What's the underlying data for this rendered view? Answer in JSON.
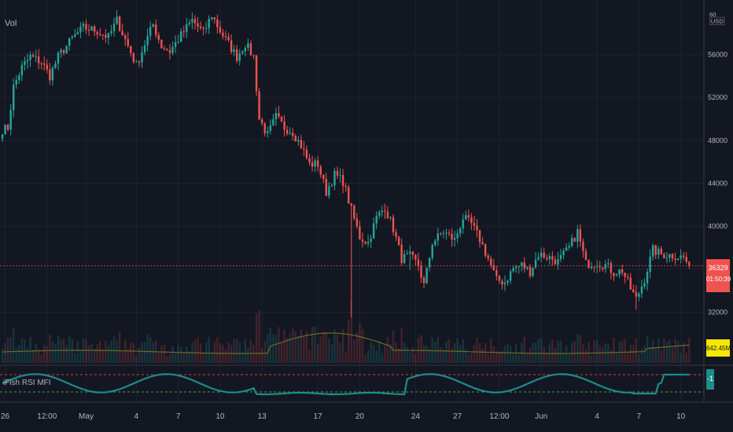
{
  "chart": {
    "volume_label": "Vol",
    "indicator_label": "iFish RSI MFI",
    "currency_label": "USD",
    "price_axis_top": "60",
    "colors": {
      "background": "#131722",
      "up": "#26a69a",
      "down": "#ef5350",
      "grid": "#1e222d",
      "axis_text": "#b2b5be",
      "ma": "#6b6b2a",
      "indicator_line": "#1c8c8c",
      "upper_band": "#e53935",
      "lower_band": "#43a047",
      "price_tag": "#ef5350",
      "volume_tag": "#f6e600"
    }
  },
  "chart_data": {
    "type": "candlestick",
    "price_axis": {
      "ticks": [
        56000,
        52000,
        48000,
        44000,
        40000,
        36000,
        32000
      ],
      "tick_labels": [
        "56000",
        "52000",
        "48000",
        "44000",
        "40000",
        "36000",
        "32000"
      ],
      "range": [
        30500,
        60500
      ]
    },
    "last_price": 36329,
    "last_price_label": "36329",
    "countdown_label": "01:50:39",
    "volume_ma_label": "642.45M",
    "indicator_value_label": "-1",
    "x_axis": {
      "labels": [
        "26",
        "12:00",
        "May",
        "4",
        "7",
        "10",
        "13",
        "17",
        "20",
        "24",
        "27",
        "12:00",
        "Jun",
        "4",
        "7",
        "10"
      ],
      "label_index": [
        1,
        16,
        30,
        48,
        63,
        78,
        93,
        113,
        128,
        148,
        163,
        178,
        193,
        213,
        228,
        243
      ]
    },
    "price_keyframes": [
      [
        0,
        49000
      ],
      [
        2,
        49200
      ],
      [
        4,
        53000
      ],
      [
        7,
        54800
      ],
      [
        10,
        55800
      ],
      [
        14,
        55300
      ],
      [
        17,
        54000
      ],
      [
        20,
        55800
      ],
      [
        25,
        57500
      ],
      [
        29,
        58500
      ],
      [
        34,
        58200
      ],
      [
        38,
        57600
      ],
      [
        41,
        59200
      ],
      [
        45,
        56800
      ],
      [
        48,
        55000
      ],
      [
        51,
        57000
      ],
      [
        54,
        58800
      ],
      [
        57,
        56800
      ],
      [
        60,
        56300
      ],
      [
        64,
        57800
      ],
      [
        68,
        59200
      ],
      [
        72,
        58000
      ],
      [
        75,
        59700
      ],
      [
        78,
        58200
      ],
      [
        81,
        57000
      ],
      [
        84,
        55800
      ],
      [
        87,
        57000
      ],
      [
        90,
        55800
      ],
      [
        92,
        50000
      ],
      [
        95,
        48500
      ],
      [
        98,
        50200
      ],
      [
        101,
        49200
      ],
      [
        104,
        48800
      ],
      [
        107,
        47500
      ],
      [
        110,
        45800
      ],
      [
        113,
        45800
      ],
      [
        116,
        43200
      ],
      [
        119,
        44800
      ],
      [
        122,
        44200
      ],
      [
        125,
        41500
      ],
      [
        128,
        39000
      ],
      [
        131,
        38500
      ],
      [
        134,
        40800
      ],
      [
        137,
        41800
      ],
      [
        140,
        39800
      ],
      [
        143,
        37000
      ],
      [
        146,
        37200
      ],
      [
        149,
        36400
      ],
      [
        151,
        34500
      ],
      [
        154,
        38500
      ],
      [
        158,
        39500
      ],
      [
        162,
        38700
      ],
      [
        165,
        40800
      ],
      [
        168,
        40200
      ],
      [
        171,
        38800
      ],
      [
        174,
        37000
      ],
      [
        177,
        35000
      ],
      [
        180,
        34800
      ],
      [
        183,
        36100
      ],
      [
        186,
        36400
      ],
      [
        189,
        35800
      ],
      [
        192,
        37400
      ],
      [
        195,
        37200
      ],
      [
        199,
        36700
      ],
      [
        203,
        38000
      ],
      [
        206,
        39500
      ],
      [
        209,
        36500
      ],
      [
        213,
        36600
      ],
      [
        216,
        36400
      ],
      [
        219,
        35700
      ],
      [
        222,
        35900
      ],
      [
        225,
        34200
      ],
      [
        227,
        33200
      ],
      [
        230,
        35100
      ],
      [
        233,
        37800
      ],
      [
        236,
        37400
      ],
      [
        240,
        37300
      ],
      [
        244,
        37100
      ],
      [
        246,
        36329
      ]
    ]
  }
}
